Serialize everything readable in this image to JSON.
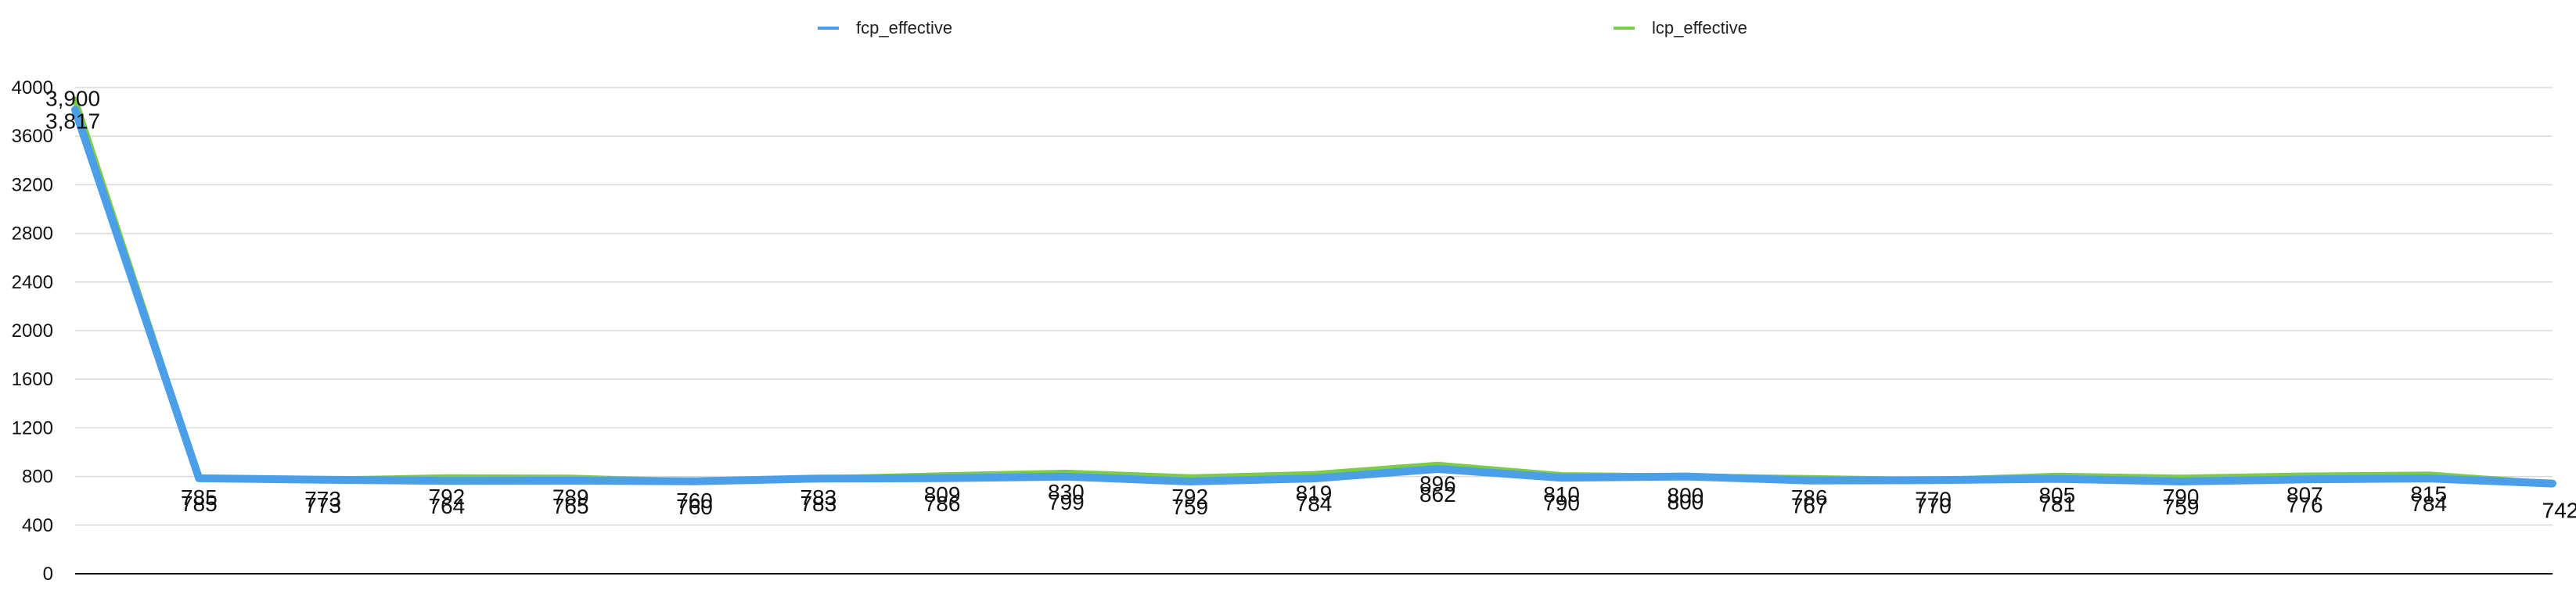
{
  "chart_data": {
    "type": "line",
    "title": "",
    "xlabel": "",
    "ylabel": "",
    "ylim": [
      0,
      4000
    ],
    "yticks": [
      0,
      400,
      800,
      1200,
      1600,
      2000,
      2400,
      2800,
      3200,
      3600,
      4000
    ],
    "grid": true,
    "legend": "top",
    "x": [
      1,
      2,
      3,
      4,
      5,
      6,
      7,
      8,
      9,
      10,
      11,
      12,
      13,
      14,
      15,
      16,
      17,
      18,
      19,
      20,
      21
    ],
    "series": [
      {
        "name": "fcp_effective",
        "color": "#4A9FE8",
        "values": [
          3817,
          785,
          773,
          764,
          765,
          760,
          783,
          786,
          799,
          759,
          784,
          862,
          790,
          800,
          767,
          770,
          781,
          759,
          776,
          784,
          742
        ]
      },
      {
        "name": "lcp_effective",
        "color": "#7DCB4A",
        "values": [
          3900,
          785,
          773,
          792,
          789,
          760,
          783,
          809,
          830,
          792,
          819,
          896,
          810,
          800,
          786,
          770,
          805,
          790,
          807,
          815,
          742
        ]
      }
    ]
  }
}
